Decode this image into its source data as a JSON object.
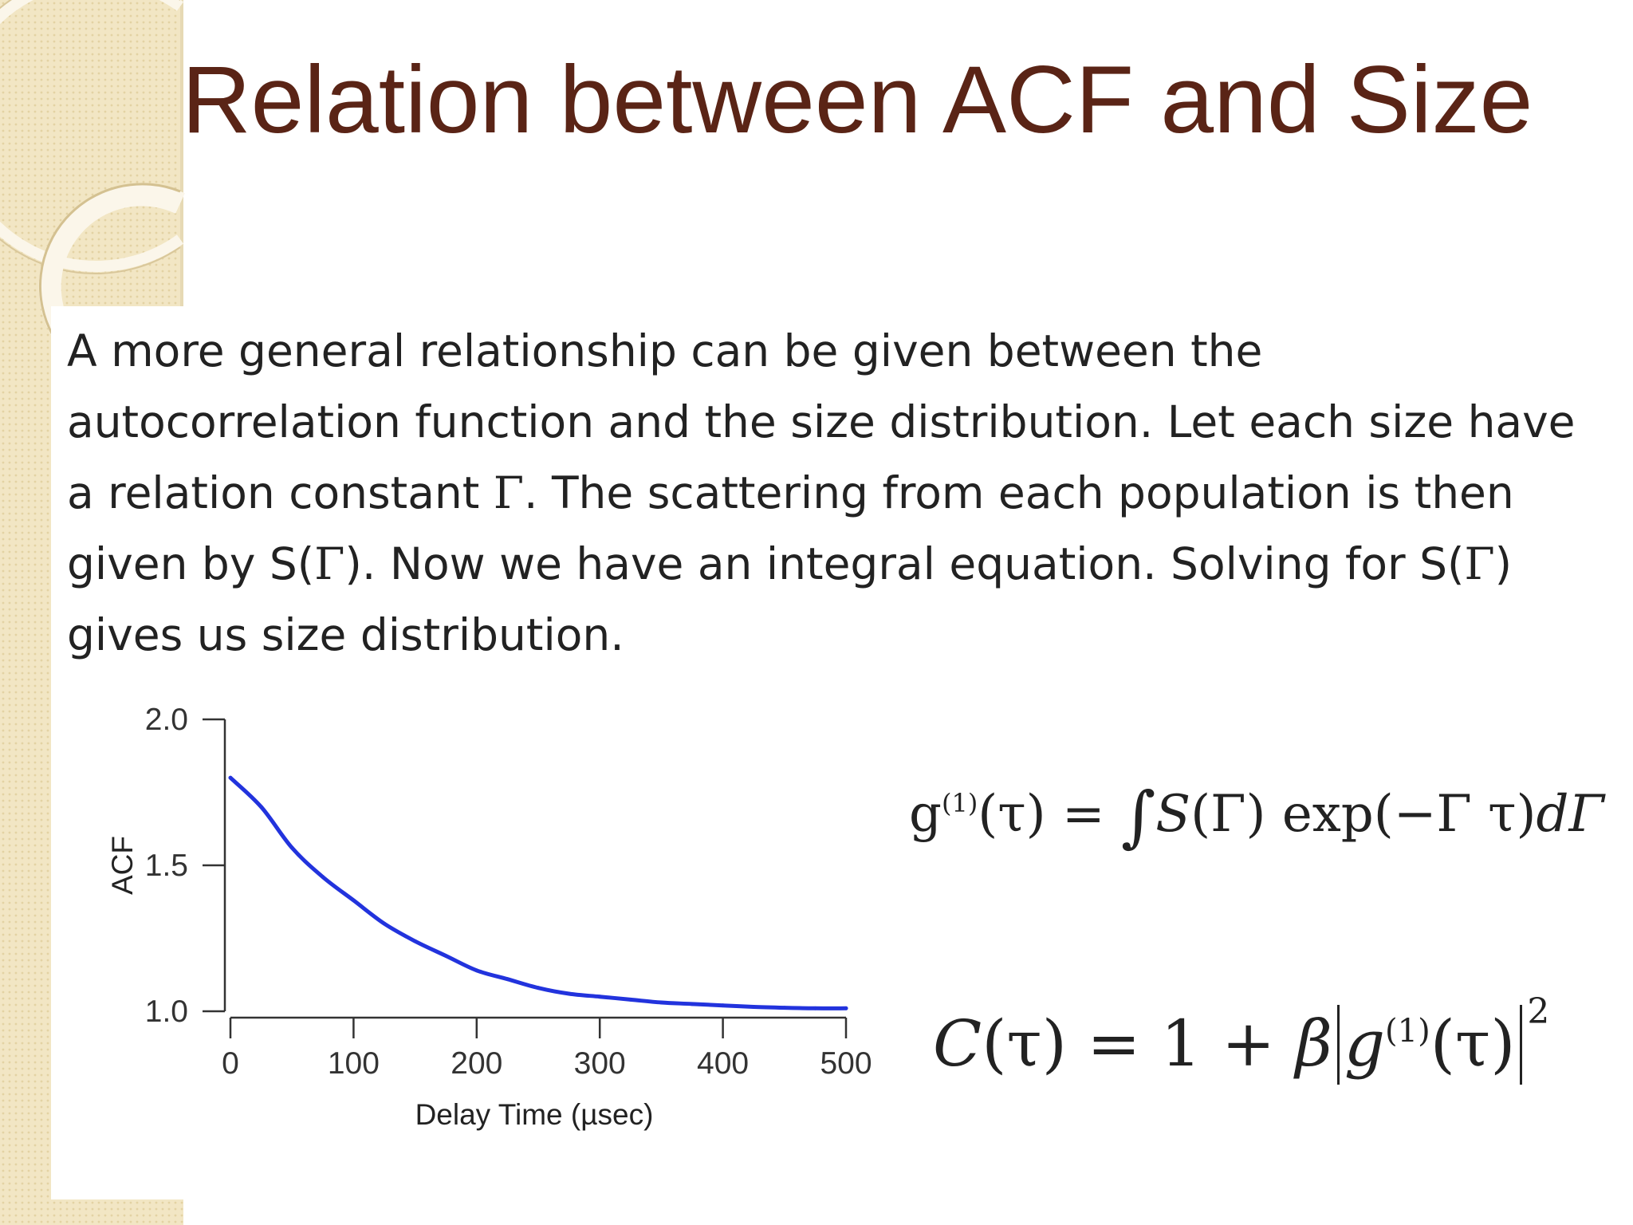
{
  "slide": {
    "title": "Relation between ACF and Size",
    "body": {
      "part1": "A more general relationship can be given between the autocorrelation function and the size distribution.  Let each size have a relation constant ",
      "gamma1": "Γ",
      "part2": ".  The scattering from each population is then given by S(",
      "gamma2": "Γ",
      "part3": ").  Now we have an integral equation.  Solving for S(",
      "gamma3": "Γ",
      "part4": ") gives us size distribution."
    },
    "equation_g1": {
      "g": "g",
      "sup": "(1)",
      "arg": "(τ) = ",
      "integral": "∫",
      "s": "S",
      "rest": "(Γ) exp(−Γ τ)",
      "dgamma": "dΓ"
    },
    "equation_c": {
      "c": "C",
      "eq": "(τ) = 1 + ",
      "beta": "β",
      "g": "g",
      "sup": "(1)",
      "arg": "(τ)",
      "pow": "2"
    },
    "colors": {
      "title": "#5a2416",
      "curve": "#2233dd",
      "background_pattern": "#f2e6c4"
    }
  },
  "chart_data": {
    "type": "line",
    "xlabel": "Delay Time (µsec)",
    "ylabel": "ACF",
    "xlim": [
      0,
      500
    ],
    "ylim": [
      1.0,
      2.0
    ],
    "x_ticks": [
      "0",
      "100",
      "200",
      "300",
      "400",
      "500"
    ],
    "y_ticks": [
      "2.0",
      "1.5",
      "1.0"
    ],
    "grid": false,
    "series": [
      {
        "color": "#2233dd",
        "x": [
          0,
          25,
          50,
          75,
          100,
          125,
          150,
          175,
          200,
          225,
          250,
          275,
          300,
          325,
          350,
          375,
          400,
          425,
          450,
          475,
          500
        ],
        "y": [
          1.8,
          1.7,
          1.56,
          1.46,
          1.38,
          1.3,
          1.24,
          1.19,
          1.14,
          1.11,
          1.08,
          1.06,
          1.05,
          1.04,
          1.03,
          1.025,
          1.02,
          1.015,
          1.012,
          1.01,
          1.01
        ]
      }
    ]
  }
}
